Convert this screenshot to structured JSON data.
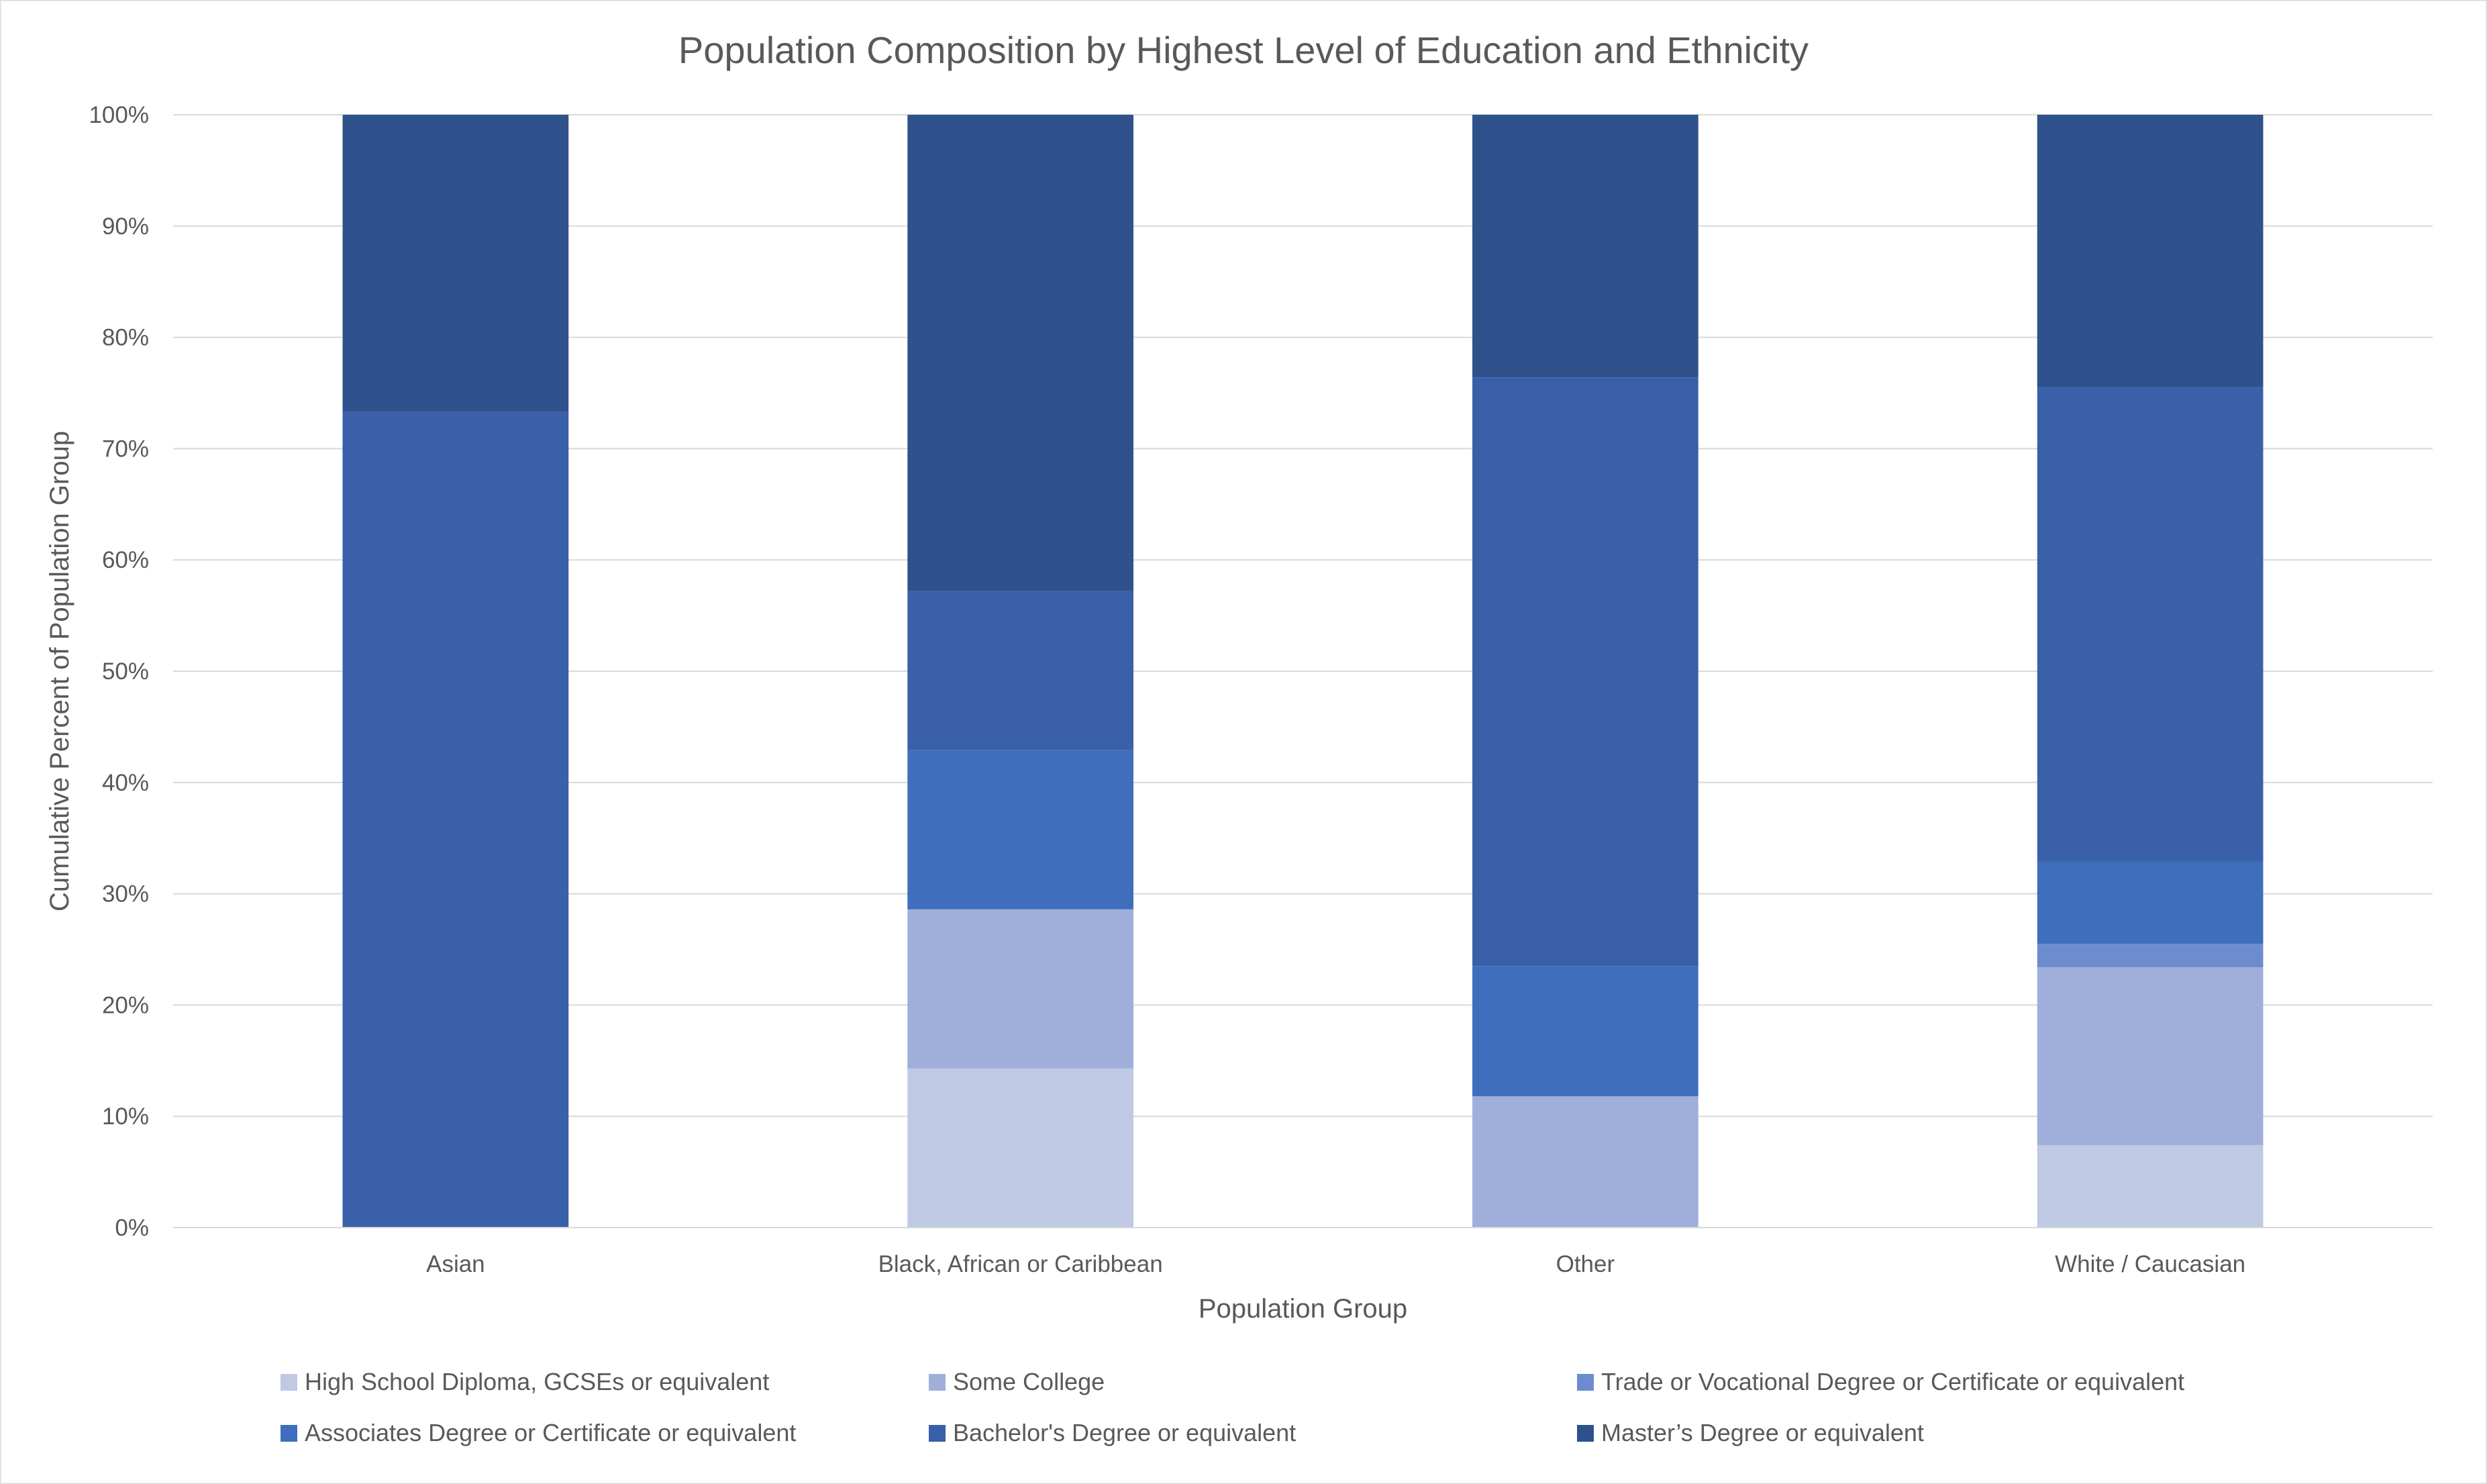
{
  "chart_data": {
    "type": "bar",
    "stacked": true,
    "title": "Population Composition by Highest Level of Education and Ethnicity",
    "xlabel": "Population Group",
    "ylabel": "Cumulative Percent of Population Group",
    "ylim": [
      0,
      100
    ],
    "y_ticks": [
      0,
      10,
      20,
      30,
      40,
      50,
      60,
      70,
      80,
      90,
      100
    ],
    "y_tick_suffix": "%",
    "grid": true,
    "legend_position": "bottom",
    "categories": [
      "Asian",
      "Black, African or Caribbean",
      "Other",
      "White / Caucasian"
    ],
    "series": [
      {
        "name": "High School Diploma, GCSEs or equivalent",
        "color": "#bfc9e4",
        "values": [
          0,
          14.3,
          0,
          7.4
        ]
      },
      {
        "name": "Some College",
        "color": "#a0afd9",
        "values": [
          0,
          14.3,
          11.8,
          16.0
        ]
      },
      {
        "name": "Trade or Vocational Degree or Certificate or equivalent",
        "color": "#6d8ccf",
        "values": [
          0,
          0,
          0,
          2.1
        ]
      },
      {
        "name": "Associates Degree or Certificate or equivalent",
        "color": "#3f6ebd",
        "values": [
          0,
          14.3,
          11.7,
          7.4
        ]
      },
      {
        "name": "Bachelor's Degree or equivalent",
        "color": "#3960a8",
        "values": [
          73.3,
          14.3,
          52.9,
          42.6
        ]
      },
      {
        "name": "Master’s Degree or equivalent",
        "color": "#2f528c",
        "values": [
          26.7,
          42.8,
          23.6,
          24.5
        ]
      }
    ]
  }
}
